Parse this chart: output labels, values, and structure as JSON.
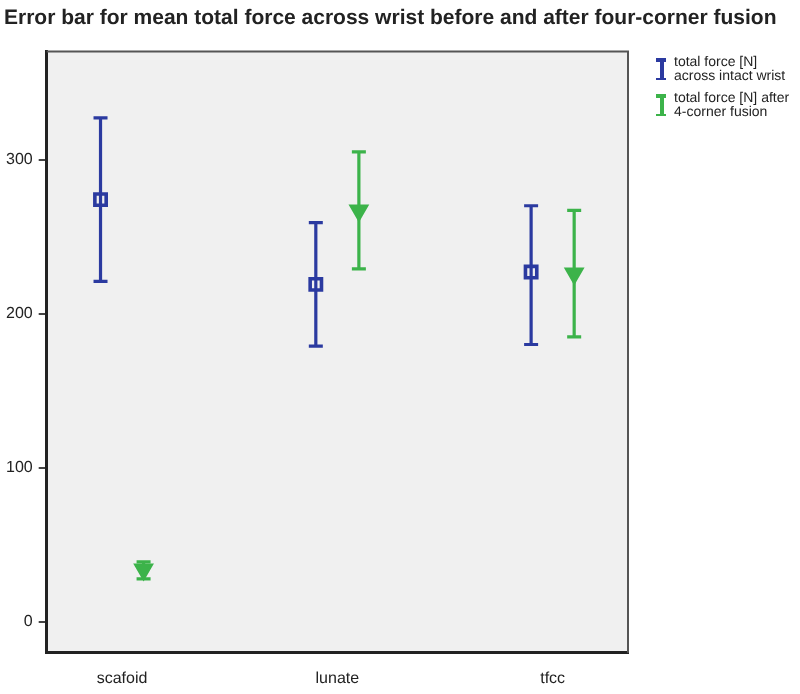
{
  "chart_data": {
    "type": "scatter",
    "title": "Error bar for mean total force across wrist before and after four-corner fusion",
    "categories": [
      "scafoid",
      "lunate",
      "tfcc"
    ],
    "series": [
      {
        "name": "total force [N] across intact wrist",
        "color": "#2b3aa0",
        "marker": "square",
        "values": [
          274,
          219,
          227
        ],
        "errors": [
          [
            221,
            327
          ],
          [
            179,
            259
          ],
          [
            180,
            270
          ]
        ]
      },
      {
        "name": "total force  [N] after 4-corner fusion",
        "color": "#3cb34a",
        "marker": "triangle",
        "values": [
          34,
          267,
          226
        ],
        "errors": [
          [
            28,
            39
          ],
          [
            229,
            305
          ],
          [
            185,
            267
          ]
        ]
      }
    ],
    "ylim": [
      -20,
      370
    ],
    "yticks": [
      0,
      100,
      200,
      300
    ],
    "grid": false,
    "legend": "top right"
  }
}
